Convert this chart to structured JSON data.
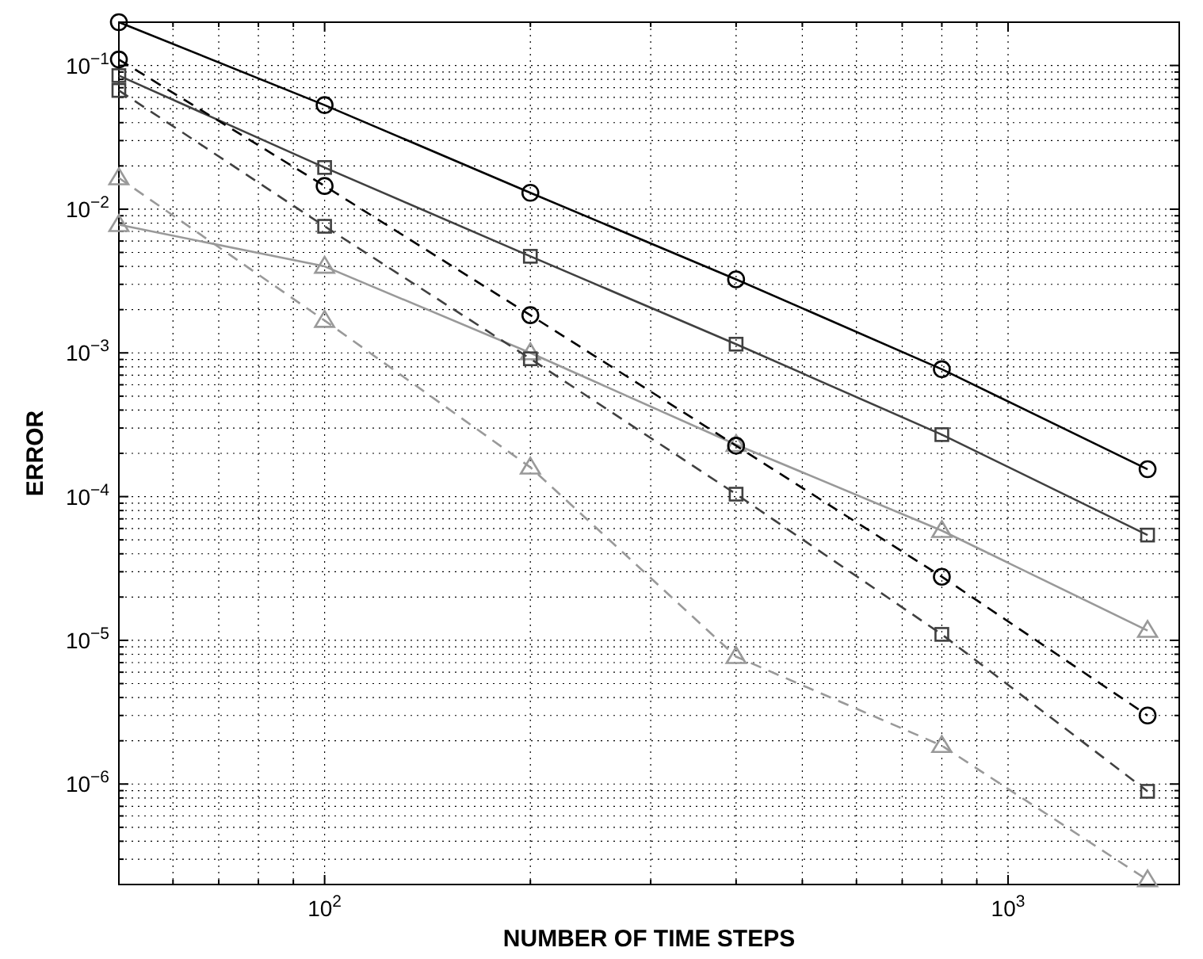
{
  "chart_data": {
    "type": "line",
    "xlabel": "NUMBER OF TIME STEPS",
    "ylabel": "ERROR",
    "log": "xy",
    "grid": true,
    "x": [
      50,
      100,
      200,
      400,
      800,
      1600
    ],
    "xlim": [
      50,
      1780
    ],
    "ylim": [
      2e-07,
      0.2
    ],
    "xticks": [
      {
        "value": 60,
        "label": null
      },
      {
        "value": 70,
        "label": null
      },
      {
        "value": 80,
        "label": null
      },
      {
        "value": 90,
        "label": null
      },
      {
        "value": 100,
        "label": "10$^{2}$"
      },
      {
        "value": 200,
        "label": null
      },
      {
        "value": 300,
        "label": null
      },
      {
        "value": 400,
        "label": null
      },
      {
        "value": 500,
        "label": null
      },
      {
        "value": 600,
        "label": null
      },
      {
        "value": 700,
        "label": null
      },
      {
        "value": 800,
        "label": null
      },
      {
        "value": 900,
        "label": null
      },
      {
        "value": 1000,
        "label": "10$^{3}$"
      }
    ],
    "yticks": [
      {
        "value": 3e-07,
        "label": null
      },
      {
        "value": 4e-07,
        "label": null
      },
      {
        "value": 5e-07,
        "label": null
      },
      {
        "value": 6e-07,
        "label": null
      },
      {
        "value": 7e-07,
        "label": null
      },
      {
        "value": 8e-07,
        "label": null
      },
      {
        "value": 9e-07,
        "label": null
      },
      {
        "value": 1e-06,
        "label": "10$^{−6}$"
      },
      {
        "value": 2e-06,
        "label": null
      },
      {
        "value": 3e-06,
        "label": null
      },
      {
        "value": 4e-06,
        "label": null
      },
      {
        "value": 5e-06,
        "label": null
      },
      {
        "value": 6e-06,
        "label": null
      },
      {
        "value": 7e-06,
        "label": null
      },
      {
        "value": 8e-06,
        "label": null
      },
      {
        "value": 9e-06,
        "label": null
      },
      {
        "value": 1e-05,
        "label": "10$^{−5}$"
      },
      {
        "value": 2e-05,
        "label": null
      },
      {
        "value": 3e-05,
        "label": null
      },
      {
        "value": 4e-05,
        "label": null
      },
      {
        "value": 5e-05,
        "label": null
      },
      {
        "value": 6e-05,
        "label": null
      },
      {
        "value": 7e-05,
        "label": null
      },
      {
        "value": 8e-05,
        "label": null
      },
      {
        "value": 9e-05,
        "label": null
      },
      {
        "value": 0.0001,
        "label": "10$^{−4}$"
      },
      {
        "value": 0.0002,
        "label": null
      },
      {
        "value": 0.0003,
        "label": null
      },
      {
        "value": 0.0004,
        "label": null
      },
      {
        "value": 0.0005,
        "label": null
      },
      {
        "value": 0.0006,
        "label": null
      },
      {
        "value": 0.0007,
        "label": null
      },
      {
        "value": 0.0008,
        "label": null
      },
      {
        "value": 0.0009,
        "label": null
      },
      {
        "value": 0.001,
        "label": "10$^{−3}$"
      },
      {
        "value": 0.002,
        "label": null
      },
      {
        "value": 0.003,
        "label": null
      },
      {
        "value": 0.004,
        "label": null
      },
      {
        "value": 0.005,
        "label": null
      },
      {
        "value": 0.006,
        "label": null
      },
      {
        "value": 0.007,
        "label": null
      },
      {
        "value": 0.008,
        "label": null
      },
      {
        "value": 0.009,
        "label": null
      },
      {
        "value": 0.01,
        "label": "10$^{−2}$"
      },
      {
        "value": 0.02,
        "label": null
      },
      {
        "value": 0.03,
        "label": null
      },
      {
        "value": 0.04,
        "label": null
      },
      {
        "value": 0.05,
        "label": null
      },
      {
        "value": 0.06,
        "label": null
      },
      {
        "value": 0.07,
        "label": null
      },
      {
        "value": 0.08,
        "label": null
      },
      {
        "value": 0.09,
        "label": null
      },
      {
        "value": 0.1,
        "label": "10$^{−1}$"
      }
    ],
    "series": [
      {
        "color": "#000000",
        "marker": "circle",
        "line_style": "solid",
        "values": [
          0.2,
          0.053,
          0.013,
          0.00325,
          0.00077,
          0.000155
        ]
      },
      {
        "color": "#404040",
        "marker": "square",
        "line_style": "solid",
        "values": [
          0.085,
          0.0195,
          0.0047,
          0.00115,
          0.00027,
          5.4e-05
        ]
      },
      {
        "color": "#999999",
        "marker": "triangle",
        "line_style": "solid",
        "values": [
          0.0078,
          0.004,
          0.001,
          0.00023,
          5.8e-05,
          1.17e-05
        ]
      },
      {
        "color": "#000000",
        "marker": "circle",
        "line_style": "dashed",
        "values": [
          0.11,
          0.0145,
          0.00183,
          0.000226,
          2.77e-05,
          3e-06
        ]
      },
      {
        "color": "#404040",
        "marker": "square",
        "line_style": "dashed",
        "values": [
          0.067,
          0.0076,
          0.00091,
          0.000104,
          1.1e-05,
          8.9e-07
        ]
      },
      {
        "color": "#999999",
        "marker": "triangle",
        "line_style": "dashed",
        "values": [
          0.0165,
          0.00168,
          0.00016,
          7.7e-06,
          1.85e-06,
          2.15e-07
        ]
      }
    ]
  }
}
